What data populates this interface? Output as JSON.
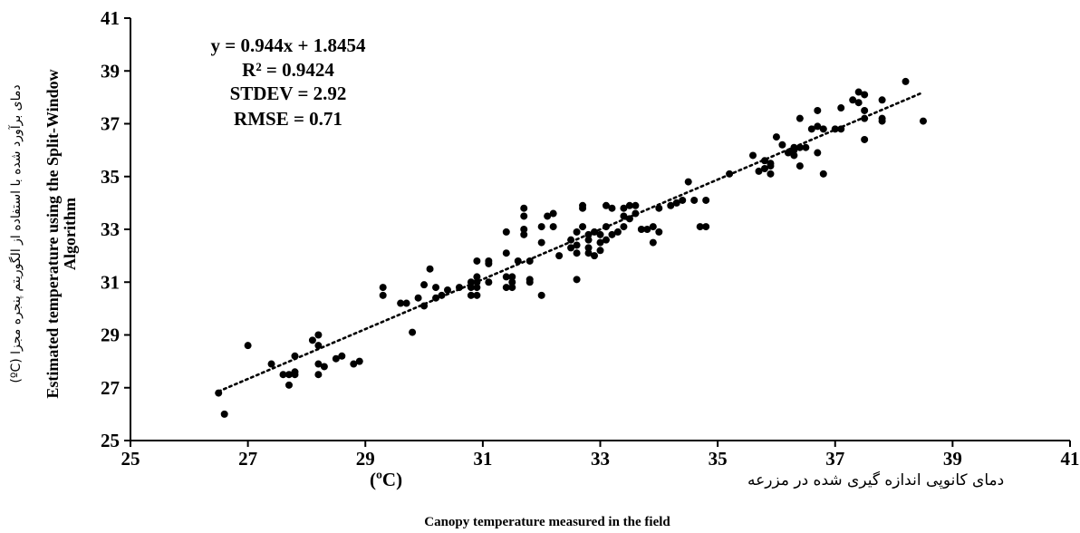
{
  "chart_data": {
    "type": "scatter",
    "xlim": [
      25,
      41
    ],
    "ylim": [
      25,
      41
    ],
    "x_ticks": [
      "25",
      "27",
      "29",
      "31",
      "33",
      "35",
      "37",
      "39",
      "41"
    ],
    "y_ticks": [
      "25",
      "27",
      "29",
      "31",
      "33",
      "35",
      "37",
      "39",
      "41"
    ],
    "grid": false,
    "trendline": {
      "type": "linear",
      "slope": 0.944,
      "intercept": 1.8454,
      "x_range": [
        26.5,
        38.5
      ],
      "style": "dotted"
    },
    "annotations": [
      "y = 0.944x + 1.8454",
      "R² = 0.9424",
      "STDEV = 2.92",
      "RMSE = 0.71"
    ],
    "ylabel_fa": "دمای برآورد شده با استفاده از الگوریتم پنجره مجزا (ºC)",
    "ylabel_en_line1": "Estimated temperature using the Split-Window",
    "ylabel_en_line2": "Algorithm",
    "xlabel_fa": "دمای کانوپی اندازه گیری شده در مزرعه",
    "xlabel_unit": "(ºC)",
    "xlabel_en": "Canopy temperature measured in the field",
    "points": [
      [
        26.5,
        26.8
      ],
      [
        26.6,
        26.0
      ],
      [
        27.0,
        28.6
      ],
      [
        27.4,
        27.9
      ],
      [
        27.6,
        27.5
      ],
      [
        27.7,
        27.5
      ],
      [
        27.7,
        27.1
      ],
      [
        27.8,
        27.6
      ],
      [
        27.8,
        27.5
      ],
      [
        27.8,
        28.2
      ],
      [
        28.1,
        28.8
      ],
      [
        28.2,
        29.0
      ],
      [
        28.2,
        28.6
      ],
      [
        28.2,
        27.9
      ],
      [
        28.2,
        27.5
      ],
      [
        28.3,
        27.8
      ],
      [
        28.5,
        28.1
      ],
      [
        28.6,
        28.2
      ],
      [
        28.8,
        27.9
      ],
      [
        28.9,
        28.0
      ],
      [
        29.3,
        30.8
      ],
      [
        29.3,
        30.5
      ],
      [
        29.6,
        30.2
      ],
      [
        29.7,
        30.2
      ],
      [
        29.8,
        29.1
      ],
      [
        29.9,
        30.4
      ],
      [
        30.0,
        30.9
      ],
      [
        30.0,
        30.1
      ],
      [
        30.1,
        31.5
      ],
      [
        30.2,
        30.8
      ],
      [
        30.2,
        30.4
      ],
      [
        30.3,
        30.5
      ],
      [
        30.4,
        30.7
      ],
      [
        30.6,
        30.8
      ],
      [
        30.8,
        31.0
      ],
      [
        30.8,
        30.8
      ],
      [
        30.8,
        30.5
      ],
      [
        30.9,
        31.2
      ],
      [
        30.9,
        30.8
      ],
      [
        30.9,
        31.0
      ],
      [
        30.9,
        31.8
      ],
      [
        30.9,
        30.5
      ],
      [
        31.1,
        31.8
      ],
      [
        31.1,
        31.7
      ],
      [
        31.1,
        31.0
      ],
      [
        31.4,
        32.1
      ],
      [
        31.4,
        31.2
      ],
      [
        31.4,
        30.8
      ],
      [
        31.4,
        32.9
      ],
      [
        31.5,
        31.2
      ],
      [
        31.5,
        31.0
      ],
      [
        31.5,
        30.8
      ],
      [
        31.6,
        31.8
      ],
      [
        31.7,
        33.8
      ],
      [
        31.7,
        33.5
      ],
      [
        31.7,
        33.0
      ],
      [
        31.7,
        32.8
      ],
      [
        31.8,
        31.8
      ],
      [
        31.8,
        31.0
      ],
      [
        31.8,
        31.1
      ],
      [
        32.0,
        33.1
      ],
      [
        32.0,
        32.5
      ],
      [
        32.0,
        30.5
      ],
      [
        32.1,
        33.5
      ],
      [
        32.2,
        33.6
      ],
      [
        32.2,
        33.1
      ],
      [
        32.3,
        32.0
      ],
      [
        32.5,
        32.3
      ],
      [
        32.5,
        32.6
      ],
      [
        32.6,
        32.9
      ],
      [
        32.6,
        32.1
      ],
      [
        32.6,
        31.1
      ],
      [
        32.6,
        32.4
      ],
      [
        32.7,
        33.9
      ],
      [
        32.7,
        33.8
      ],
      [
        32.7,
        33.1
      ],
      [
        32.8,
        32.6
      ],
      [
        32.8,
        32.3
      ],
      [
        32.8,
        32.8
      ],
      [
        32.8,
        32.1
      ],
      [
        32.9,
        32.0
      ],
      [
        32.9,
        32.9
      ],
      [
        33.0,
        32.8
      ],
      [
        33.0,
        32.5
      ],
      [
        33.0,
        32.2
      ],
      [
        33.1,
        32.6
      ],
      [
        33.1,
        33.9
      ],
      [
        33.1,
        33.1
      ],
      [
        33.2,
        33.8
      ],
      [
        33.2,
        32.8
      ],
      [
        33.3,
        32.9
      ],
      [
        33.4,
        33.8
      ],
      [
        33.4,
        33.5
      ],
      [
        33.4,
        33.1
      ],
      [
        33.5,
        33.4
      ],
      [
        33.5,
        33.9
      ],
      [
        33.6,
        33.6
      ],
      [
        33.6,
        33.9
      ],
      [
        33.7,
        33.0
      ],
      [
        33.8,
        33.0
      ],
      [
        33.9,
        33.1
      ],
      [
        33.9,
        32.5
      ],
      [
        34.0,
        33.8
      ],
      [
        34.0,
        32.9
      ],
      [
        34.2,
        33.9
      ],
      [
        34.3,
        34.0
      ],
      [
        34.4,
        34.1
      ],
      [
        34.5,
        34.8
      ],
      [
        34.6,
        34.1
      ],
      [
        34.7,
        33.1
      ],
      [
        34.8,
        33.1
      ],
      [
        34.8,
        34.1
      ],
      [
        35.2,
        35.1
      ],
      [
        35.6,
        35.8
      ],
      [
        35.7,
        35.2
      ],
      [
        35.8,
        35.3
      ],
      [
        35.8,
        35.6
      ],
      [
        35.9,
        35.1
      ],
      [
        35.9,
        35.4
      ],
      [
        35.9,
        35.5
      ],
      [
        36.0,
        36.5
      ],
      [
        36.1,
        36.2
      ],
      [
        36.2,
        35.9
      ],
      [
        36.3,
        35.8
      ],
      [
        36.3,
        36.0
      ],
      [
        36.3,
        36.1
      ],
      [
        36.4,
        37.2
      ],
      [
        36.4,
        36.1
      ],
      [
        36.4,
        35.4
      ],
      [
        36.5,
        36.1
      ],
      [
        36.6,
        36.8
      ],
      [
        36.7,
        37.5
      ],
      [
        36.7,
        35.9
      ],
      [
        36.7,
        36.9
      ],
      [
        36.8,
        36.8
      ],
      [
        36.8,
        35.1
      ],
      [
        37.0,
        36.8
      ],
      [
        37.1,
        36.8
      ],
      [
        37.1,
        37.6
      ],
      [
        37.3,
        37.9
      ],
      [
        37.4,
        38.2
      ],
      [
        37.4,
        37.8
      ],
      [
        37.5,
        38.1
      ],
      [
        37.5,
        37.5
      ],
      [
        37.5,
        37.2
      ],
      [
        37.5,
        36.4
      ],
      [
        37.8,
        37.9
      ],
      [
        37.8,
        37.2
      ],
      [
        37.8,
        37.1
      ],
      [
        38.2,
        38.6
      ],
      [
        38.5,
        37.1
      ]
    ]
  }
}
